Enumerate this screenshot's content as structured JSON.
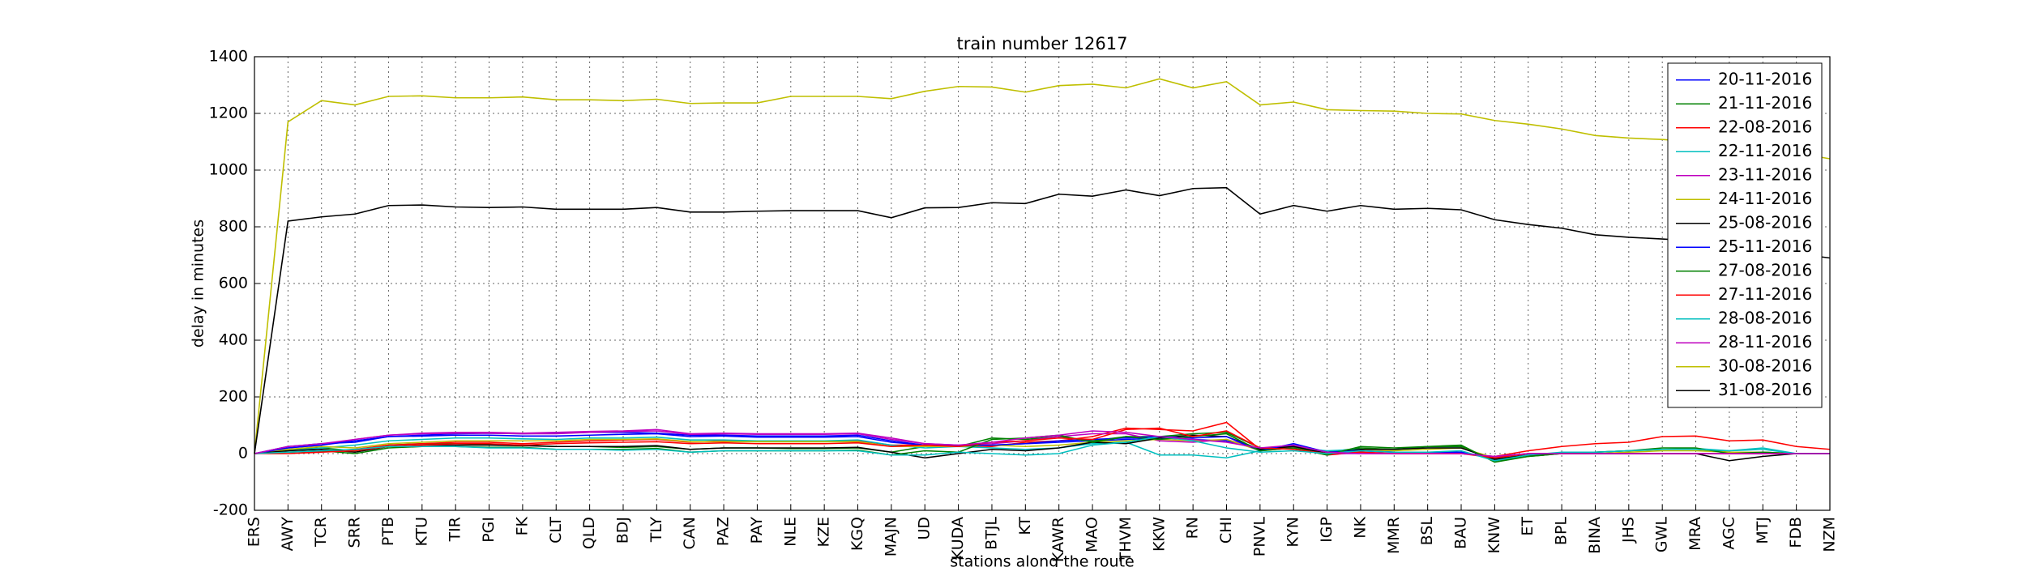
{
  "chart_data": {
    "type": "line",
    "title": "train number 12617",
    "xlabel": "stations along the route",
    "ylabel": "delay in minutes",
    "categories": [
      "ERS",
      "AWY",
      "TCR",
      "SRR",
      "PTB",
      "KTU",
      "TIR",
      "PGI",
      "FK",
      "CLT",
      "QLD",
      "BDJ",
      "TLY",
      "CAN",
      "PAZ",
      "PAY",
      "NLE",
      "KZE",
      "KGQ",
      "MAJN",
      "UD",
      "KUDA",
      "BTJL",
      "KT",
      "KAWR",
      "MAO",
      "THVM",
      "KKW",
      "RN",
      "CHI",
      "PNVL",
      "KYN",
      "IGP",
      "NK",
      "MMR",
      "BSL",
      "BAU",
      "KNW",
      "ET",
      "BPL",
      "BINA",
      "JHS",
      "GWL",
      "MRA",
      "AGC",
      "MTJ",
      "FDB",
      "NZM"
    ],
    "ylim": [
      -200,
      1400
    ],
    "yticks": [
      -200,
      0,
      200,
      400,
      600,
      800,
      1000,
      1200,
      1400
    ],
    "grid": true,
    "legend": "upper right",
    "series": [
      {
        "name": "20-11-2016",
        "color": "#0000ff",
        "values": [
          0,
          25,
          35,
          40,
          60,
          65,
          70,
          72,
          70,
          72,
          75,
          75,
          72,
          65,
          65,
          62,
          62,
          62,
          65,
          45,
          30,
          28,
          30,
          35,
          40,
          45,
          50,
          55,
          50,
          45,
          15,
          30,
          5,
          10,
          5,
          5,
          5,
          -20,
          -5,
          0,
          0,
          0,
          0,
          0,
          0,
          0,
          0,
          0
        ]
      },
      {
        "name": "21-11-2016",
        "color": "#008000",
        "values": [
          0,
          15,
          20,
          10,
          30,
          35,
          35,
          32,
          30,
          25,
          25,
          22,
          25,
          15,
          20,
          20,
          18,
          18,
          20,
          5,
          25,
          25,
          55,
          50,
          60,
          45,
          60,
          60,
          70,
          75,
          20,
          25,
          5,
          20,
          15,
          25,
          25,
          -25,
          -10,
          0,
          5,
          10,
          15,
          15,
          5,
          5,
          0,
          0
        ]
      },
      {
        "name": "22-08-2016",
        "color": "#ff0000",
        "values": [
          0,
          5,
          8,
          15,
          30,
          35,
          40,
          40,
          35,
          40,
          45,
          48,
          50,
          40,
          45,
          42,
          42,
          42,
          45,
          30,
          30,
          28,
          25,
          40,
          45,
          60,
          90,
          85,
          80,
          110,
          15,
          20,
          -5,
          5,
          0,
          0,
          0,
          -10,
          10,
          25,
          35,
          40,
          60,
          62,
          45,
          48,
          25,
          15
        ]
      },
      {
        "name": "22-11-2016",
        "color": "#00bfbf",
        "values": [
          0,
          10,
          20,
          30,
          45,
          50,
          55,
          55,
          52,
          50,
          55,
          55,
          58,
          48,
          48,
          45,
          45,
          45,
          48,
          30,
          20,
          25,
          20,
          15,
          20,
          35,
          40,
          -5,
          -5,
          -15,
          10,
          20,
          10,
          15,
          15,
          20,
          20,
          -20,
          -5,
          0,
          5,
          10,
          15,
          18,
          10,
          20,
          0,
          0
        ]
      },
      {
        "name": "23-11-2016",
        "color": "#bf00bf",
        "values": [
          0,
          20,
          30,
          50,
          65,
          70,
          72,
          72,
          70,
          70,
          75,
          78,
          80,
          68,
          70,
          68,
          68,
          68,
          70,
          50,
          35,
          30,
          35,
          45,
          60,
          70,
          70,
          45,
          40,
          50,
          15,
          25,
          0,
          0,
          0,
          0,
          0,
          -10,
          0,
          0,
          0,
          0,
          0,
          0,
          0,
          0,
          0,
          0
        ]
      },
      {
        "name": "24-11-2016",
        "color": "#bfbf00",
        "values": [
          0,
          15,
          25,
          20,
          35,
          40,
          45,
          45,
          45,
          45,
          50,
          50,
          52,
          42,
          42,
          42,
          42,
          42,
          42,
          25,
          25,
          25,
          30,
          25,
          30,
          40,
          45,
          50,
          45,
          50,
          10,
          20,
          0,
          10,
          10,
          15,
          20,
          -15,
          -5,
          0,
          0,
          5,
          10,
          10,
          5,
          5,
          0,
          0
        ]
      },
      {
        "name": "25-08-2016",
        "color": "#000000",
        "values": [
          0,
          10,
          15,
          5,
          25,
          30,
          30,
          30,
          28,
          25,
          25,
          25,
          28,
          15,
          20,
          20,
          20,
          20,
          22,
          5,
          -15,
          0,
          15,
          10,
          20,
          40,
          35,
          55,
          65,
          60,
          15,
          25,
          0,
          15,
          15,
          20,
          20,
          -20,
          -5,
          0,
          0,
          0,
          0,
          0,
          -25,
          -10,
          0,
          0
        ]
      },
      {
        "name": "25-11-2016",
        "color": "#0000ff",
        "values": [
          0,
          20,
          30,
          45,
          60,
          62,
          65,
          65,
          62,
          62,
          65,
          68,
          70,
          60,
          62,
          58,
          58,
          58,
          60,
          40,
          30,
          28,
          30,
          35,
          45,
          50,
          55,
          60,
          55,
          60,
          10,
          35,
          5,
          10,
          5,
          5,
          5,
          -15,
          0,
          0,
          0,
          0,
          0,
          0,
          0,
          0,
          0,
          0
        ]
      },
      {
        "name": "27-08-2016",
        "color": "#008000",
        "values": [
          0,
          5,
          10,
          0,
          20,
          25,
          25,
          22,
          22,
          15,
          15,
          15,
          18,
          5,
          10,
          10,
          10,
          10,
          12,
          -5,
          10,
          5,
          50,
          55,
          65,
          40,
          60,
          50,
          60,
          70,
          10,
          20,
          -5,
          25,
          20,
          25,
          30,
          -30,
          -10,
          0,
          5,
          10,
          20,
          20,
          0,
          5,
          0,
          0
        ]
      },
      {
        "name": "27-11-2016",
        "color": "#ff0000",
        "values": [
          0,
          0,
          5,
          10,
          25,
          30,
          35,
          35,
          30,
          35,
          38,
          40,
          42,
          35,
          38,
          35,
          35,
          35,
          38,
          25,
          30,
          25,
          40,
          45,
          55,
          50,
          85,
          90,
          60,
          80,
          20,
          15,
          0,
          5,
          0,
          0,
          0,
          -15,
          0,
          0,
          0,
          0,
          0,
          0,
          0,
          0,
          0,
          0
        ]
      },
      {
        "name": "28-08-2016",
        "color": "#00bfbf",
        "values": [
          0,
          5,
          10,
          15,
          25,
          25,
          25,
          20,
          20,
          15,
          15,
          12,
          15,
          5,
          10,
          10,
          10,
          10,
          10,
          -5,
          -5,
          5,
          0,
          -5,
          0,
          30,
          40,
          60,
          45,
          20,
          5,
          10,
          0,
          10,
          5,
          5,
          10,
          -25,
          -5,
          5,
          5,
          10,
          15,
          15,
          10,
          15,
          0,
          0
        ]
      },
      {
        "name": "28-11-2016",
        "color": "#bf00bf",
        "values": [
          0,
          25,
          35,
          50,
          65,
          72,
          75,
          75,
          72,
          75,
          78,
          80,
          85,
          70,
          72,
          70,
          70,
          70,
          72,
          55,
          35,
          30,
          40,
          55,
          65,
          80,
          75,
          60,
          50,
          40,
          20,
          30,
          5,
          0,
          0,
          0,
          0,
          -10,
          0,
          0,
          0,
          0,
          0,
          0,
          0,
          0,
          0,
          0
        ]
      },
      {
        "name": "30-08-2016",
        "color": "#bfbf00",
        "values": [
          0,
          1170,
          1245,
          1230,
          1260,
          1262,
          1255,
          1255,
          1258,
          1248,
          1248,
          1245,
          1250,
          1235,
          1237,
          1237,
          1260,
          1260,
          1260,
          1252,
          1278,
          1295,
          1293,
          1275,
          1298,
          1303,
          1290,
          1322,
          1290,
          1312,
          1230,
          1240,
          1213,
          1210,
          1208,
          1200,
          1198,
          1175,
          1162,
          1145,
          1122,
          1113,
          1108,
          1100,
          1090,
          1075,
          1060,
          1040
        ]
      },
      {
        "name": "31-08-2016",
        "color": "#000000",
        "values": [
          0,
          820,
          835,
          845,
          875,
          877,
          870,
          868,
          870,
          862,
          862,
          862,
          868,
          852,
          852,
          855,
          857,
          857,
          857,
          832,
          867,
          868,
          885,
          882,
          915,
          908,
          930,
          910,
          935,
          938,
          845,
          875,
          855,
          875,
          862,
          865,
          860,
          825,
          808,
          795,
          772,
          763,
          757,
          750,
          740,
          725,
          705,
          690
        ]
      }
    ]
  }
}
